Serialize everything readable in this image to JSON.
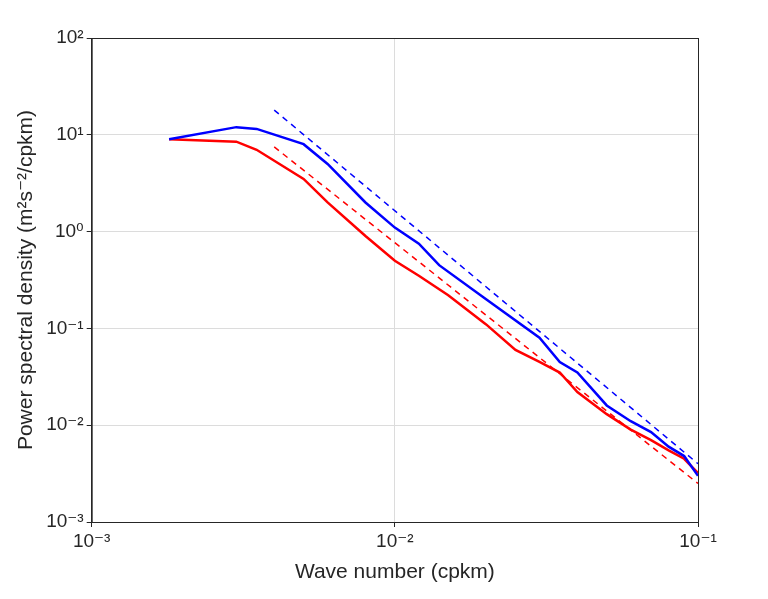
{
  "chart_data": {
    "type": "line",
    "x_label": "Wave number (cpkm)",
    "y_label": "Power spectral density (m²s⁻²/cpkm)",
    "log": true,
    "grid": true,
    "xlim": [
      0.001,
      0.1
    ],
    "ylim": [
      0.001,
      100
    ],
    "xticks": [
      {
        "value": 0.001,
        "label": "10⁻³"
      },
      {
        "value": 0.01,
        "label": "10⁻²"
      },
      {
        "value": 0.1,
        "label": "10⁻¹"
      }
    ],
    "yticks": [
      {
        "value": 0.001,
        "label": "10⁻³"
      },
      {
        "value": 0.01,
        "label": "10⁻²"
      },
      {
        "value": 0.1,
        "label": "10⁻¹"
      },
      {
        "value": 1,
        "label": "10⁰"
      },
      {
        "value": 10,
        "label": "10¹"
      },
      {
        "value": 100,
        "label": "10²"
      }
    ],
    "series": [
      {
        "color": "#0000ff",
        "line_style": "solid",
        "x": [
          0.0018,
          0.003,
          0.0035,
          0.005,
          0.006,
          0.008,
          0.01,
          0.012,
          0.014,
          0.02,
          0.03,
          0.035,
          0.04,
          0.05,
          0.06,
          0.07,
          0.08,
          0.09,
          0.1
        ],
        "values": [
          9,
          12,
          11.5,
          8,
          5,
          2,
          1.1,
          0.75,
          0.45,
          0.2,
          0.08,
          0.045,
          0.035,
          0.016,
          0.011,
          0.0085,
          0.006,
          0.0048,
          0.003
        ]
      },
      {
        "color": "#ff0000",
        "line_style": "solid",
        "x": [
          0.0018,
          0.003,
          0.0035,
          0.005,
          0.006,
          0.008,
          0.01,
          0.012,
          0.015,
          0.02,
          0.025,
          0.03,
          0.035,
          0.04,
          0.05,
          0.06,
          0.07,
          0.08,
          0.09,
          0.1
        ],
        "values": [
          9,
          8.5,
          7,
          3.5,
          2,
          0.9,
          0.5,
          0.35,
          0.22,
          0.11,
          0.06,
          0.045,
          0.035,
          0.022,
          0.013,
          0.009,
          0.007,
          0.0055,
          0.0045,
          0.0032
        ]
      },
      {
        "color": "#0000ff",
        "line_style": "dashed",
        "x": [
          0.004,
          0.1
        ],
        "values": [
          18,
          0.004
        ]
      },
      {
        "color": "#ff0000",
        "line_style": "dashed",
        "x": [
          0.004,
          0.1
        ],
        "values": [
          7.5,
          0.0025
        ]
      }
    ]
  }
}
